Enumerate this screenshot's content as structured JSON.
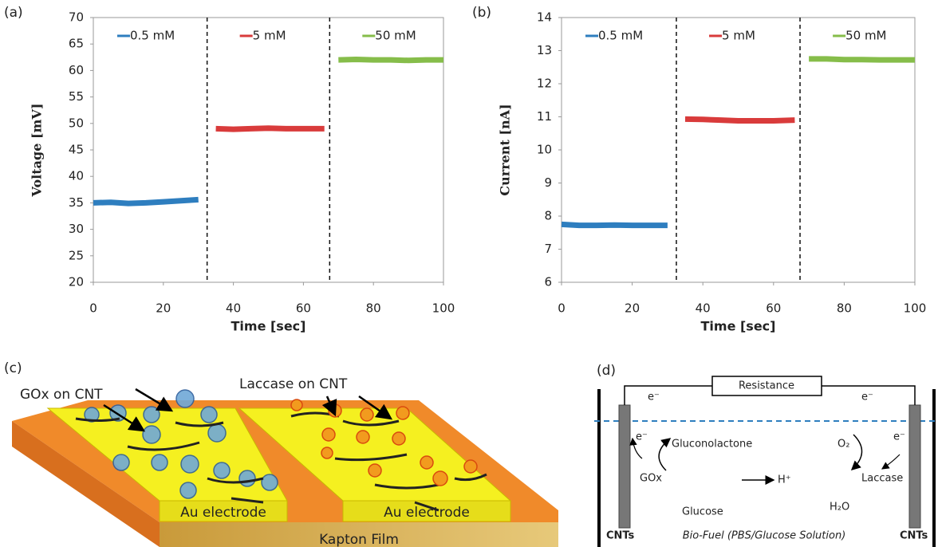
{
  "chart_data": [
    {
      "type": "line",
      "panel_label": "(a)",
      "x_label": "Time [sec]",
      "y_label": "Voltage [mV]",
      "xlim": [
        0,
        100
      ],
      "xticks": [
        0,
        20,
        40,
        60,
        80,
        100
      ],
      "ylim": [
        20,
        70
      ],
      "yticks": [
        20,
        25,
        30,
        35,
        40,
        45,
        50,
        55,
        60,
        65,
        70
      ],
      "vlines": [
        32.5,
        67.5
      ],
      "series": [
        {
          "name": "0.5 mM",
          "color": "#2e7ebf",
          "x": [
            0,
            5,
            10,
            15,
            20,
            25,
            30
          ],
          "values": [
            35.0,
            35.1,
            34.9,
            35.0,
            35.2,
            35.4,
            35.6
          ]
        },
        {
          "name": "5 mM",
          "color": "#d93b3b",
          "x": [
            35,
            40,
            45,
            50,
            55,
            60,
            66
          ],
          "values": [
            49.0,
            48.9,
            49.0,
            49.1,
            49.0,
            49.0,
            49.0
          ]
        },
        {
          "name": "50 mM",
          "color": "#86bd4a",
          "x": [
            70,
            75,
            80,
            85,
            90,
            95,
            100
          ],
          "values": [
            62.0,
            62.1,
            62.0,
            62.0,
            61.9,
            62.0,
            62.0
          ]
        }
      ]
    },
    {
      "type": "line",
      "panel_label": "(b)",
      "x_label": "Time [sec]",
      "y_label": "Current [nA]",
      "xlim": [
        0,
        100
      ],
      "xticks": [
        0,
        20,
        40,
        60,
        80,
        100
      ],
      "ylim": [
        6,
        14
      ],
      "yticks": [
        6,
        7,
        8,
        9,
        10,
        11,
        12,
        13,
        14
      ],
      "vlines": [
        32.5,
        67.5
      ],
      "series": [
        {
          "name": "0.5 mM",
          "color": "#2e7ebf",
          "x": [
            0,
            5,
            10,
            15,
            20,
            25,
            30
          ],
          "values": [
            7.75,
            7.72,
            7.72,
            7.73,
            7.72,
            7.72,
            7.72
          ]
        },
        {
          "name": "5 mM",
          "color": "#d93b3b",
          "x": [
            35,
            40,
            45,
            50,
            55,
            60,
            66
          ],
          "values": [
            10.93,
            10.92,
            10.9,
            10.88,
            10.88,
            10.88,
            10.9
          ]
        },
        {
          "name": "50 mM",
          "color": "#86bd4a",
          "x": [
            70,
            75,
            80,
            85,
            90,
            95,
            100
          ],
          "values": [
            12.75,
            12.75,
            12.73,
            12.73,
            12.72,
            12.72,
            12.72
          ]
        }
      ]
    }
  ],
  "panel_c": {
    "label": "(c)",
    "gox": "GOx on CNT",
    "laccase": "Laccase on CNT",
    "electrode_left": "Au electrode",
    "electrode_right": "Au electrode",
    "film": "Kapton Film"
  },
  "panel_d": {
    "label": "(d)",
    "resistance": "Resistance",
    "e_top_left": "e⁻",
    "e_top_right": "e⁻",
    "e_left": "e⁻",
    "e_right": "e⁻",
    "gluconolactone": "Gluconolactone",
    "o2": "O₂",
    "gox": "GOx",
    "proton": "H⁺",
    "laccase": "Laccase",
    "glucose": "Glucose",
    "water": "H₂O",
    "cnts_left": "CNTs",
    "fuel": "Bio-Fuel (PBS/Glucose Solution)",
    "cnts_right": "CNTs"
  }
}
